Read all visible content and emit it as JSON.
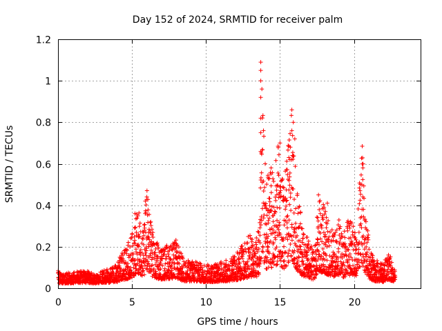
{
  "chart_data": {
    "type": "scatter",
    "title": "Day 152 of 2024, SRMTID for receiver palm",
    "xlabel": "GPS time / hours",
    "ylabel": "SRMTID / TECUs",
    "xlim": [
      0,
      24.5
    ],
    "ylim": [
      0,
      1.2
    ],
    "xticks": [
      0,
      5,
      10,
      15,
      20
    ],
    "xtick_labels": [
      "0",
      "5",
      "10",
      "15",
      "20"
    ],
    "yticks": [
      0,
      0.2,
      0.4,
      0.6,
      0.8,
      1.0,
      1.2
    ],
    "ytick_labels": [
      "0",
      "0.2",
      "0.4",
      "0.6",
      "0.8",
      "1",
      "1.2"
    ],
    "grid": true,
    "marker": "+",
    "color": "#ff0000",
    "series": [
      {
        "name": "SRMTID",
        "envelope_note": "approximate upper envelope of dense point cloud",
        "x": [
          0.0,
          0.1,
          0.3,
          0.6,
          1.0,
          1.5,
          2.0,
          2.5,
          3.0,
          3.5,
          4.0,
          4.3,
          4.6,
          5.0,
          5.2,
          5.4,
          5.6,
          5.8,
          6.0,
          6.2,
          6.5,
          6.8,
          7.0,
          7.5,
          8.0,
          8.5,
          9.0,
          9.5,
          10.0,
          10.5,
          11.0,
          11.5,
          12.0,
          12.5,
          13.0,
          13.3,
          13.6,
          13.8,
          14.0,
          14.3,
          14.6,
          14.9,
          15.2,
          15.5,
          15.7,
          15.9,
          16.2,
          16.5,
          16.8,
          17.0,
          17.3,
          17.6,
          17.9,
          18.1,
          18.4,
          18.7,
          19.0,
          19.3,
          19.6,
          19.9,
          20.2,
          20.5,
          20.8,
          21.1,
          21.4,
          21.7,
          22.0,
          22.3,
          22.6,
          22.8
        ],
        "y": [
          0.08,
          0.06,
          0.05,
          0.06,
          0.06,
          0.07,
          0.07,
          0.05,
          0.07,
          0.08,
          0.1,
          0.16,
          0.18,
          0.25,
          0.3,
          0.38,
          0.3,
          0.28,
          0.47,
          0.36,
          0.22,
          0.2,
          0.18,
          0.2,
          0.22,
          0.12,
          0.12,
          0.11,
          0.1,
          0.1,
          0.12,
          0.12,
          0.15,
          0.2,
          0.26,
          0.2,
          0.3,
          1.12,
          0.5,
          0.55,
          0.55,
          0.7,
          0.5,
          0.62,
          0.88,
          0.7,
          0.45,
          0.3,
          0.25,
          0.2,
          0.18,
          0.42,
          0.4,
          0.36,
          0.28,
          0.25,
          0.33,
          0.25,
          0.32,
          0.3,
          0.25,
          0.75,
          0.35,
          0.17,
          0.12,
          0.12,
          0.1,
          0.18,
          0.12,
          0.08
        ],
        "outliers": [
          {
            "x": 13.7,
            "y": 1.09
          },
          {
            "x": 13.7,
            "y": 1.05
          },
          {
            "x": 13.7,
            "y": 1.0
          },
          {
            "x": 13.7,
            "y": 0.92
          },
          {
            "x": 13.7,
            "y": 0.82
          },
          {
            "x": 13.7,
            "y": 0.75
          },
          {
            "x": 13.7,
            "y": 0.66
          },
          {
            "x": 15.8,
            "y": 0.86
          },
          {
            "x": 15.9,
            "y": 0.8
          },
          {
            "x": 15.8,
            "y": 0.76
          },
          {
            "x": 16.0,
            "y": 0.72
          },
          {
            "x": 15.0,
            "y": 0.7
          },
          {
            "x": 20.6,
            "y": 0.58
          },
          {
            "x": 20.6,
            "y": 0.44
          },
          {
            "x": 14.0,
            "y": 0.6
          },
          {
            "x": 14.4,
            "y": 0.58
          },
          {
            "x": 15.6,
            "y": 0.63
          },
          {
            "x": 15.7,
            "y": 0.68
          },
          {
            "x": 5.2,
            "y": 0.36
          },
          {
            "x": 6.0,
            "y": 0.44
          },
          {
            "x": 5.9,
            "y": 0.42
          },
          {
            "x": 17.6,
            "y": 0.45
          },
          {
            "x": 18.2,
            "y": 0.41
          }
        ]
      }
    ]
  }
}
